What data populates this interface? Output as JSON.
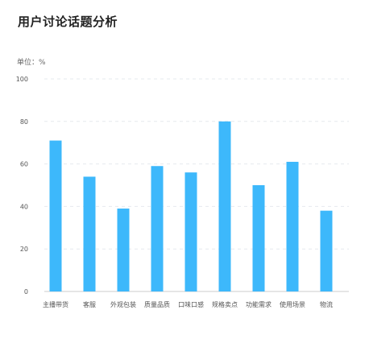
{
  "header": {
    "title": "用户讨论话题分析"
  },
  "chart_data": {
    "type": "bar",
    "unit_label": "单位：%",
    "categories": [
      "主播带货",
      "客服",
      "外观包装",
      "质量品质",
      "口味口感",
      "规格卖点",
      "功能需求",
      "使用场景",
      "物流"
    ],
    "values": [
      71,
      54,
      39,
      59,
      56,
      80,
      50,
      61,
      38
    ],
    "ylim": [
      0,
      100
    ],
    "yticks": [
      0,
      20,
      40,
      60,
      80,
      100
    ],
    "grid": true,
    "bar_color": "#3DB8FB",
    "grid_color": "#E6E9EE",
    "axis_color": "#CCCCCC"
  }
}
